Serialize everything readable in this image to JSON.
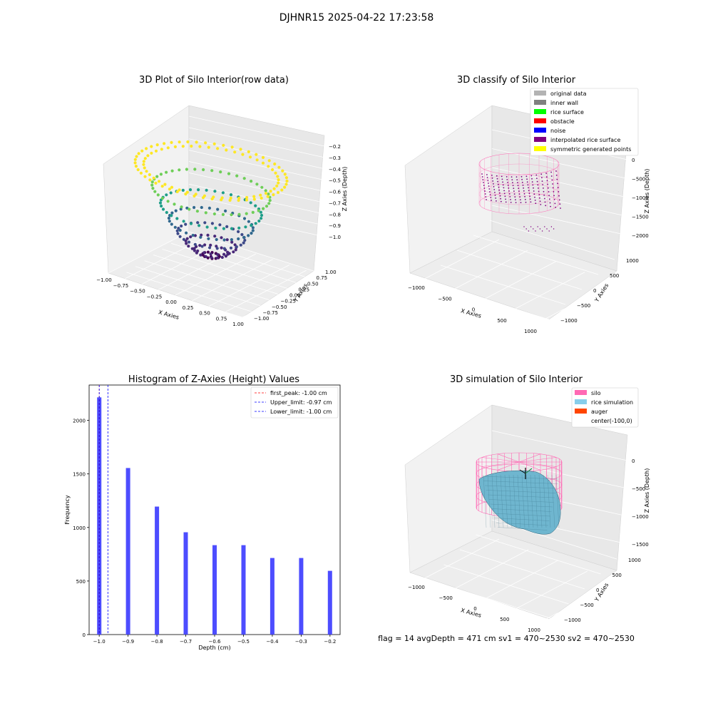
{
  "figure": {
    "suptitle": "DJHNR15 2025-04-22 17:23:58",
    "footer": "flag = 14   avgDepth = 471 cm  sv1 = 470~2530  sv2 = 470~2530"
  },
  "chart_data": [
    {
      "type": "scatter",
      "title": "3D Plot of Silo Interior(row data)",
      "xlabel": "X Axies",
      "ylabel": "Y Axies",
      "zlabel": "Z Axies (Depth)",
      "xticks": [
        "−1.00",
        "−0.75",
        "−0.50",
        "−0.25",
        "0.00",
        "0.25",
        "0.50",
        "0.75",
        "1.00"
      ],
      "yticks": [
        "−1.00",
        "−0.75",
        "−0.50",
        "−0.25",
        "0.00",
        "0.25",
        "0.50",
        "0.75",
        "1.00"
      ],
      "zticks": [
        "−1.0",
        "−0.9",
        "−0.8",
        "−0.7",
        "−0.6",
        "−0.5",
        "−0.4",
        "−0.3",
        "−0.2"
      ],
      "xlim": [
        -1,
        1
      ],
      "ylim": [
        -1,
        1
      ],
      "zlim": [
        -1,
        -0.2
      ],
      "shape": "bowl z = r² − 1, colormap viridis by depth",
      "grid": true
    },
    {
      "type": "scatter",
      "title": "3D classify of Silo Interior",
      "zlabel": "Z Axies (Depth)",
      "xlabel": "X Axies",
      "ylabel": "Y Axies",
      "xticks": [
        "−1000",
        "−500",
        "0",
        "500",
        "1000"
      ],
      "yticks": [
        "−1000",
        "−500",
        "0",
        "500",
        "1000"
      ],
      "zticks": [
        "−2000",
        "−1500",
        "−1000",
        "−500",
        "0"
      ],
      "legend": [
        {
          "label": "original data",
          "color": "#b3b3b3"
        },
        {
          "label": "inner wall",
          "color": "#808080"
        },
        {
          "label": "rice surface",
          "color": "#00ff00"
        },
        {
          "label": "obstacle",
          "color": "#ff0000"
        },
        {
          "label": "noise",
          "color": "#0000ff"
        },
        {
          "label": "interpolated rice surface",
          "color": "#800080"
        },
        {
          "label": "symmetric generated points",
          "color": "#ffff00"
        }
      ],
      "legend_loc": "upper-right",
      "grid": true
    },
    {
      "type": "bar",
      "title": "Histogram of Z-Axies (Height) Values",
      "xlabel": "Depth (cm)",
      "ylabel": "Frequency",
      "x": [
        -1.0,
        -0.9,
        -0.8,
        -0.7,
        -0.6,
        -0.5,
        -0.4,
        -0.3,
        -0.2
      ],
      "values": [
        2215,
        1555,
        1195,
        955,
        835,
        835,
        715,
        715,
        595
      ],
      "xticks": [
        "−1.0",
        "−0.9",
        "−0.8",
        "−0.7",
        "−0.6",
        "−0.5",
        "−0.4",
        "−0.3",
        "−0.2"
      ],
      "yticks": [
        "0",
        "500",
        "1000",
        "1500",
        "2000"
      ],
      "xlim": [
        -1.035,
        -0.165
      ],
      "ylim": [
        0,
        2330
      ],
      "bar_color": "#4d4dff",
      "vlines": [
        {
          "x": -1.0,
          "label": "first_peak: -1.00 cm",
          "color": "#ff0000"
        },
        {
          "x": -0.97,
          "label": "Upper_limit: -0.97 cm",
          "color": "#0000ff"
        },
        {
          "x": -1.0,
          "label": "Lower_limit: -1.00 cm",
          "color": "#0000ff"
        }
      ],
      "legend_loc": "upper-right"
    },
    {
      "type": "surface",
      "title": "3D simulation of Silo Interior",
      "xlabel": "X Axies",
      "ylabel": "Y Axies",
      "zlabel": "Z Axies (Depth)",
      "xticks": [
        "−1000",
        "−500",
        "0",
        "500",
        "1000"
      ],
      "yticks": [
        "−1000",
        "−500",
        "0",
        "500",
        "1000"
      ],
      "zticks": [
        "−1500",
        "−1000",
        "−500",
        "0"
      ],
      "legend": [
        {
          "label": "silo",
          "color": "#ff69b4"
        },
        {
          "label": "rice simulation",
          "color": "#87ceeb"
        },
        {
          "label": "auger",
          "color": "#ff4500"
        },
        {
          "label": "center(-100,0)",
          "color": "#ffffff"
        }
      ],
      "legend_loc": "upper-right",
      "grid": true
    }
  ]
}
